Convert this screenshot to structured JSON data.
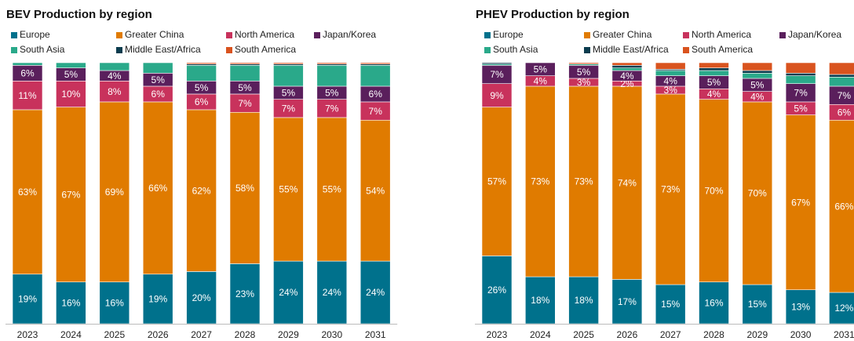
{
  "chart_data": [
    {
      "type": "bar",
      "stacked": true,
      "title": "BEV Production by region",
      "categories": [
        "2023",
        "2024",
        "2025",
        "2026",
        "2027",
        "2028",
        "2029",
        "2030",
        "2031"
      ],
      "ylim": [
        0,
        100
      ],
      "series": [
        {
          "name": "Europe",
          "color": "#00718c",
          "values": [
            19,
            16,
            16,
            19,
            20,
            23,
            24,
            24,
            24
          ],
          "value_labels": [
            "19%",
            "16%",
            "16%",
            "19%",
            "20%",
            "23%",
            "24%",
            "24%",
            "24%"
          ]
        },
        {
          "name": "Greater China",
          "color": "#e07b00",
          "values": [
            63,
            67,
            69,
            66,
            62,
            58,
            55,
            55,
            54
          ],
          "value_labels": [
            "63%",
            "67%",
            "69%",
            "66%",
            "62%",
            "58%",
            "55%",
            "55%",
            "54%"
          ]
        },
        {
          "name": "North America",
          "color": "#c8325c",
          "values": [
            11,
            10,
            8,
            6,
            6,
            7,
            7,
            7,
            7
          ],
          "value_labels": [
            "11%",
            "10%",
            "8%",
            "6%",
            "6%",
            "7%",
            "7%",
            "7%",
            "7%"
          ]
        },
        {
          "name": "Japan/Korea",
          "color": "#5a1f5c",
          "values": [
            6,
            5,
            4,
            5,
            5,
            5,
            5,
            5,
            6
          ],
          "value_labels": [
            "6%",
            "5%",
            "4%",
            "5%",
            "5%",
            "5%",
            "5%",
            "5%",
            "6%"
          ]
        },
        {
          "name": "South Asia",
          "color": "#2aa98a",
          "values": [
            1,
            2,
            3,
            4,
            6,
            6,
            8,
            8,
            8
          ]
        },
        {
          "name": "Middle East/Africa",
          "color": "#0b3c4e",
          "values": [
            0,
            0,
            0,
            0,
            0.5,
            0.5,
            0.5,
            0.5,
            0.5
          ]
        },
        {
          "name": "South America",
          "color": "#d9531e",
          "values": [
            0,
            0,
            0,
            0,
            0.5,
            0.5,
            0.5,
            0.5,
            0.5
          ]
        }
      ]
    },
    {
      "type": "bar",
      "stacked": true,
      "title": "PHEV Production by region",
      "categories": [
        "2023",
        "2024",
        "2025",
        "2026",
        "2027",
        "2028",
        "2029",
        "2030",
        "2031"
      ],
      "ylim": [
        0,
        100
      ],
      "series": [
        {
          "name": "Europe",
          "color": "#00718c",
          "values": [
            26,
            18,
            18,
            17,
            15,
            16,
            15,
            13,
            12
          ],
          "value_labels": [
            "26%",
            "18%",
            "18%",
            "17%",
            "15%",
            "16%",
            "15%",
            "13%",
            "12%"
          ]
        },
        {
          "name": "Greater China",
          "color": "#e07b00",
          "values": [
            57,
            73,
            73,
            74,
            73,
            70,
            70,
            67,
            66
          ],
          "value_labels": [
            "57%",
            "73%",
            "73%",
            "74%",
            "73%",
            "70%",
            "70%",
            "67%",
            "66%"
          ]
        },
        {
          "name": "North America",
          "color": "#c8325c",
          "values": [
            9,
            4,
            3,
            2,
            3,
            4,
            4,
            5,
            6
          ],
          "value_labels": [
            "9%",
            "4%",
            "3%",
            "2%",
            "3%",
            "4%",
            "4%",
            "5%",
            "6%"
          ]
        },
        {
          "name": "Japan/Korea",
          "color": "#5a1f5c",
          "values": [
            7,
            5,
            5,
            4,
            4,
            5,
            5,
            7,
            7
          ],
          "value_labels": [
            "7%",
            "5%",
            "5%",
            "4%",
            "4%",
            "5%",
            "5%",
            "7%",
            "7%"
          ]
        },
        {
          "name": "South Asia",
          "color": "#2aa98a",
          "values": [
            0.5,
            0,
            0.5,
            1,
            2,
            2,
            2,
            3,
            3.5
          ]
        },
        {
          "name": "Middle East/Africa",
          "color": "#0b3c4e",
          "values": [
            0.5,
            0,
            0,
            1,
            0.5,
            1,
            1,
            1,
            1
          ]
        },
        {
          "name": "South America",
          "color": "#d9531e",
          "values": [
            0,
            0,
            0.5,
            1,
            2.5,
            2,
            3,
            4,
            4.5
          ]
        }
      ]
    }
  ]
}
